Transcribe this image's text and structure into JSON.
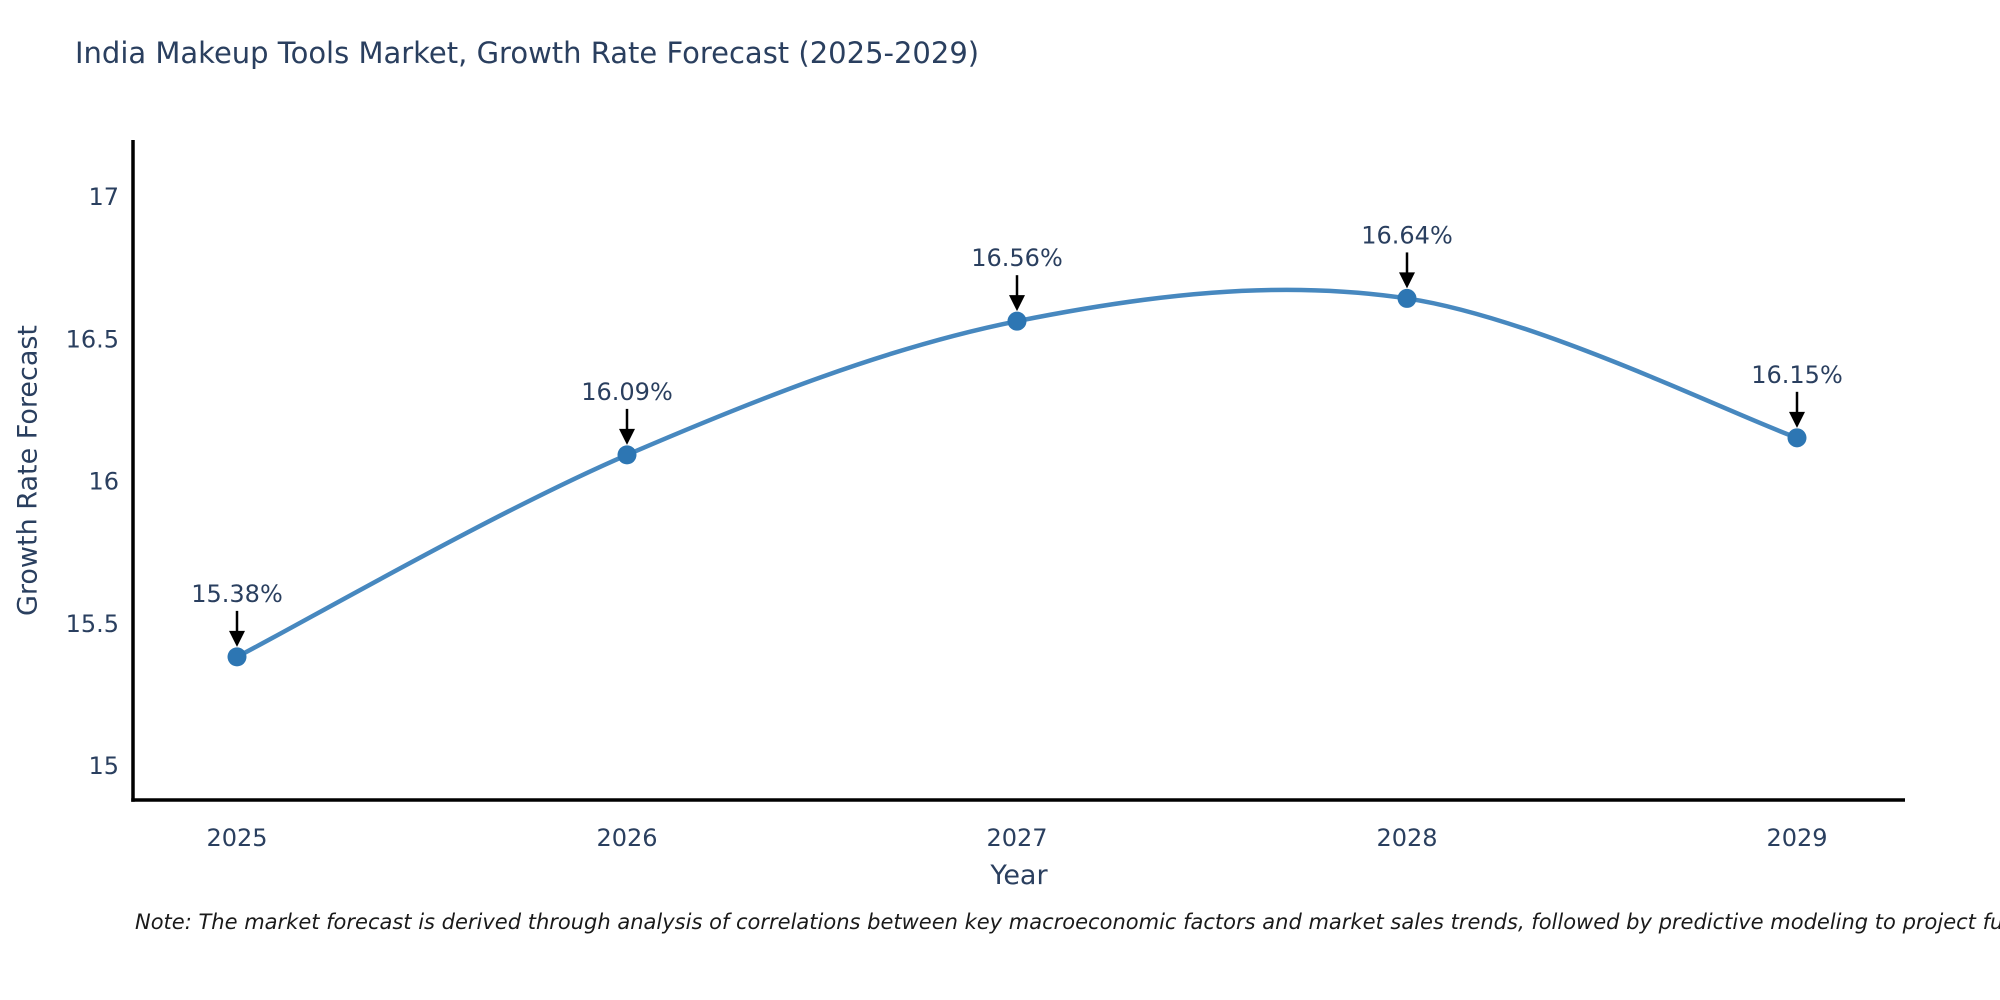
{
  "title": "India Makeup Tools Market, Growth Rate Forecast (2025-2029)",
  "note": "Note: The market forecast is derived through analysis of correlations between key macroeconomic factors and market sales trends, followed by predictive modeling to project future sales.",
  "colors": {
    "line": "#4788bf",
    "marker": "#2d76b3",
    "axis": "#000000",
    "text": "#2a3f5f",
    "annotation_arrow": "#000000",
    "background": "#ffffff"
  },
  "chart_data": {
    "type": "line",
    "title": "India Makeup Tools Market, Growth Rate Forecast (2025-2029)",
    "xlabel": "Year",
    "ylabel": "Growth Rate Forecast",
    "categories": [
      "2025",
      "2026",
      "2027",
      "2028",
      "2029"
    ],
    "series": [
      {
        "name": "Growth Rate Forecast",
        "values": [
          15.38,
          16.09,
          16.56,
          16.64,
          16.15
        ],
        "point_labels": [
          "15.38%",
          "16.09%",
          "16.56%",
          "16.64%",
          "16.15%"
        ]
      }
    ],
    "line_shape": "spline",
    "markers": true,
    "grid": false,
    "legend_position": "none",
    "ylim": [
      14.87,
      17.2
    ],
    "yticks": [
      {
        "value": 15,
        "label": "15"
      },
      {
        "value": 15.5,
        "label": "15.5"
      },
      {
        "value": 16,
        "label": "16"
      },
      {
        "value": 16.5,
        "label": "16.5"
      },
      {
        "value": 17,
        "label": "17"
      }
    ]
  }
}
